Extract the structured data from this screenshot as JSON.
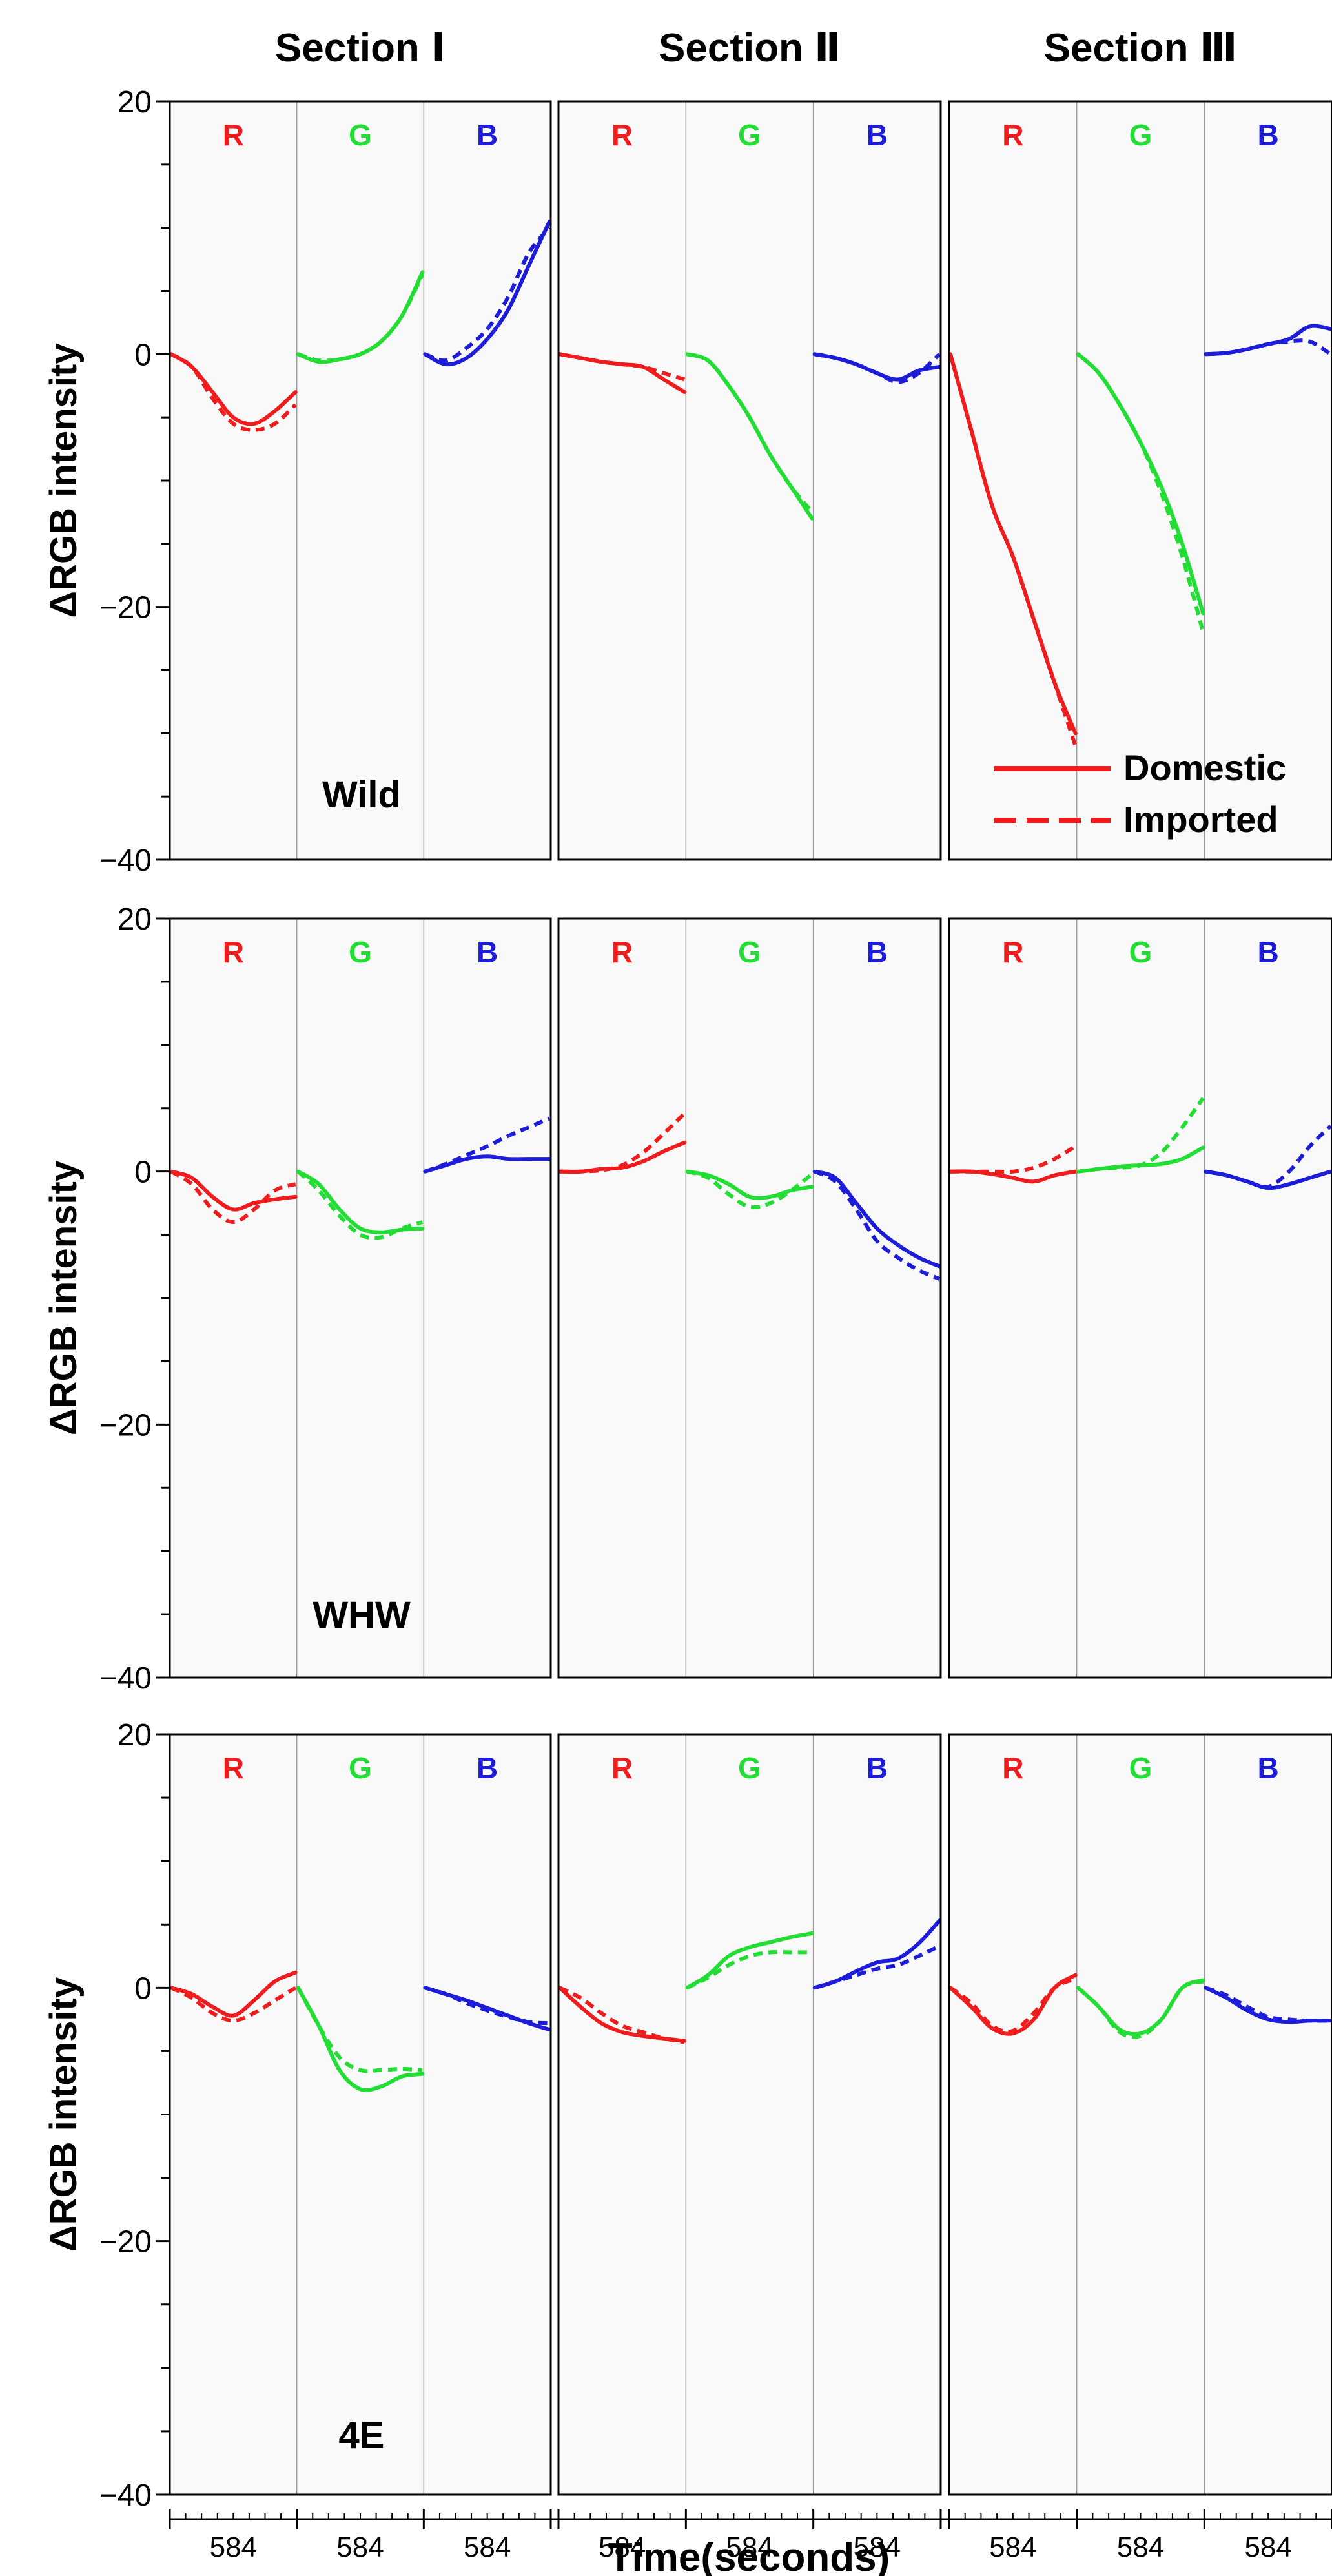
{
  "chart_data": {
    "type": "line",
    "y_axis_label": "ΔRGB intensity",
    "x_axis_label": "Time(seconds)",
    "x_tick_label": "584",
    "ylim": [
      -40,
      20
    ],
    "y_ticks": [
      20,
      0,
      -20,
      -40
    ],
    "y_tick_labels": [
      "20",
      "0",
      "−20",
      "−40"
    ],
    "columns": [
      "Section Ⅰ",
      "Section Ⅱ",
      "Section Ⅲ"
    ],
    "rows": [
      "Wild",
      "WHW",
      "4E"
    ],
    "channels": [
      "R",
      "G",
      "B"
    ],
    "channel_colors": {
      "R": "#ee1c1c",
      "G": "#22dd33",
      "B": "#1d1dd9"
    },
    "legend": {
      "location": "lower-right of Wild / Section Ⅲ",
      "entries": [
        {
          "label": "Domestic",
          "style": "solid"
        },
        {
          "label": "Imported",
          "style": "dashed"
        }
      ]
    },
    "panels": [
      {
        "row": "Wild",
        "column": "Section Ⅰ",
        "curves": {
          "R": {
            "domestic": [
              0,
              -1,
              -3,
              -5,
              -5.5,
              -4.5,
              -3
            ],
            "imported": [
              0,
              -1,
              -3.5,
              -5.5,
              -6,
              -5.5,
              -4
            ]
          },
          "G": {
            "domestic": [
              0,
              -0.6,
              -0.4,
              0,
              1,
              3,
              6.5
            ],
            "imported": [
              0,
              -0.5,
              -0.4,
              0,
              1,
              3,
              6.3
            ]
          },
          "B": {
            "domestic": [
              0,
              -0.8,
              -0.3,
              1.2,
              3.5,
              7,
              10.5
            ],
            "imported": [
              0,
              -0.5,
              0.5,
              2,
              4.5,
              8,
              10
            ]
          }
        }
      },
      {
        "row": "Wild",
        "column": "Section Ⅱ",
        "curves": {
          "R": {
            "domestic": [
              0,
              -0.3,
              -0.6,
              -0.8,
              -1,
              -2,
              -3
            ],
            "imported": [
              0,
              -0.3,
              -0.6,
              -0.8,
              -1,
              -1.5,
              -2
            ]
          },
          "G": {
            "domestic": [
              0,
              -0.5,
              -2.5,
              -5,
              -8,
              -10.5,
              -13
            ],
            "imported": [
              0,
              -0.5,
              -2.5,
              -5,
              -8,
              -10.5,
              -12.5
            ]
          },
          "B": {
            "domestic": [
              0,
              -0.3,
              -0.8,
              -1.5,
              -2,
              -1.3,
              -1
            ],
            "imported": [
              0,
              -0.3,
              -0.8,
              -1.5,
              -2.2,
              -1.5,
              0
            ]
          }
        }
      },
      {
        "row": "Wild",
        "column": "Section Ⅲ",
        "curves": {
          "R": {
            "domestic": [
              0,
              -6,
              -12,
              -16,
              -21,
              -26,
              -30
            ],
            "imported": [
              0,
              -6,
              -12,
              -16,
              -21,
              -26,
              -31
            ]
          },
          "G": {
            "domestic": [
              0,
              -1.5,
              -4,
              -7,
              -10.5,
              -15,
              -20.5
            ],
            "imported": [
              0,
              -1.5,
              -4,
              -7,
              -11,
              -16,
              -22
            ]
          },
          "B": {
            "domestic": [
              0,
              0.1,
              0.4,
              0.8,
              1.2,
              2.2,
              2
            ],
            "imported": [
              0,
              0.1,
              0.4,
              0.8,
              1,
              1,
              0
            ]
          }
        }
      },
      {
        "row": "WHW",
        "column": "Section Ⅰ",
        "curves": {
          "R": {
            "domestic": [
              0,
              -0.5,
              -2,
              -3,
              -2.5,
              -2.2,
              -2
            ],
            "imported": [
              0,
              -1,
              -3,
              -4,
              -3,
              -1.5,
              -1
            ]
          },
          "G": {
            "domestic": [
              0,
              -1,
              -3,
              -4.5,
              -4.8,
              -4.6,
              -4.5
            ],
            "imported": [
              0,
              -1.5,
              -3.5,
              -5,
              -5.2,
              -4.5,
              -4
            ]
          },
          "B": {
            "domestic": [
              0,
              0.5,
              1,
              1.2,
              1,
              1,
              1
            ],
            "imported": [
              0,
              0.6,
              1.3,
              2,
              2.8,
              3.5,
              4.2
            ]
          }
        }
      },
      {
        "row": "WHW",
        "column": "Section Ⅱ",
        "curves": {
          "R": {
            "domestic": [
              0,
              0,
              0.2,
              0.3,
              0.8,
              1.6,
              2.3
            ],
            "imported": [
              0,
              0,
              0.1,
              0.5,
              1.5,
              3,
              4.6
            ]
          },
          "G": {
            "domestic": [
              0,
              -0.3,
              -1,
              -2,
              -2,
              -1.5,
              -1.2
            ],
            "imported": [
              0,
              -0.5,
              -1.8,
              -2.8,
              -2.5,
              -1.5,
              -0.2
            ]
          },
          "B": {
            "domestic": [
              0,
              -0.5,
              -2.5,
              -4.5,
              -5.8,
              -6.8,
              -7.5
            ],
            "imported": [
              0,
              -0.8,
              -3,
              -5.5,
              -6.8,
              -7.8,
              -8.5
            ]
          }
        }
      },
      {
        "row": "WHW",
        "column": "Section Ⅲ",
        "curves": {
          "R": {
            "domestic": [
              0,
              0,
              -0.2,
              -0.5,
              -0.8,
              -0.3,
              0
            ],
            "imported": [
              0,
              0,
              0,
              0,
              0.3,
              1,
              2
            ]
          },
          "G": {
            "domestic": [
              0,
              0.2,
              0.4,
              0.5,
              0.6,
              1,
              1.9
            ],
            "imported": [
              0,
              0.2,
              0.3,
              0.5,
              1.5,
              3.5,
              5.8
            ]
          },
          "B": {
            "domestic": [
              0,
              -0.3,
              -0.8,
              -1.3,
              -1,
              -0.5,
              0
            ],
            "imported": [
              0,
              -0.3,
              -0.8,
              -1.2,
              0,
              2,
              3.6
            ]
          }
        }
      },
      {
        "row": "4E",
        "column": "Section Ⅰ",
        "curves": {
          "R": {
            "domestic": [
              0,
              -0.5,
              -1.5,
              -2.2,
              -1,
              0.5,
              1.2
            ],
            "imported": [
              0,
              -0.8,
              -2,
              -2.6,
              -2,
              -1,
              0
            ]
          },
          "G": {
            "domestic": [
              0,
              -3,
              -6.5,
              -8,
              -7.8,
              -7,
              -6.8
            ],
            "imported": [
              0,
              -3,
              -5.5,
              -6.5,
              -6.5,
              -6.4,
              -6.5
            ]
          },
          "B": {
            "domestic": [
              0,
              -0.5,
              -1,
              -1.6,
              -2.2,
              -2.8,
              -3.3
            ],
            "imported": [
              0,
              -0.5,
              -1.2,
              -1.8,
              -2.3,
              -2.7,
              -2.8
            ]
          }
        }
      },
      {
        "row": "4E",
        "column": "Section Ⅱ",
        "curves": {
          "R": {
            "domestic": [
              0,
              -1.5,
              -2.8,
              -3.5,
              -3.8,
              -4,
              -4.2
            ],
            "imported": [
              0,
              -0.8,
              -2,
              -3,
              -3.5,
              -4,
              -4.3
            ]
          },
          "G": {
            "domestic": [
              0,
              1,
              2.5,
              3.2,
              3.6,
              4,
              4.3
            ],
            "imported": [
              0,
              0.8,
              1.8,
              2.5,
              2.8,
              2.8,
              2.8
            ]
          },
          "B": {
            "domestic": [
              0,
              0.5,
              1.3,
              2,
              2.3,
              3.5,
              5.3
            ],
            "imported": [
              0,
              0.5,
              1,
              1.5,
              1.8,
              2.5,
              3.3
            ]
          }
        }
      },
      {
        "row": "4E",
        "column": "Section Ⅲ",
        "curves": {
          "R": {
            "domestic": [
              0,
              -1.5,
              -3.2,
              -3.6,
              -2.5,
              0,
              1
            ],
            "imported": [
              0,
              -1.2,
              -3,
              -3.4,
              -2,
              0,
              0.7
            ]
          },
          "G": {
            "domestic": [
              0,
              -1.5,
              -3.3,
              -3.6,
              -2.5,
              0,
              0.6
            ],
            "imported": [
              0,
              -1.5,
              -3.5,
              -3.8,
              -2.5,
              0,
              0.5
            ]
          },
          "B": {
            "domestic": [
              0,
              -0.8,
              -1.8,
              -2.5,
              -2.7,
              -2.6,
              -2.6
            ],
            "imported": [
              0,
              -0.6,
              -1.5,
              -2.3,
              -2.5,
              -2.6,
              -2.6
            ]
          }
        }
      }
    ]
  }
}
